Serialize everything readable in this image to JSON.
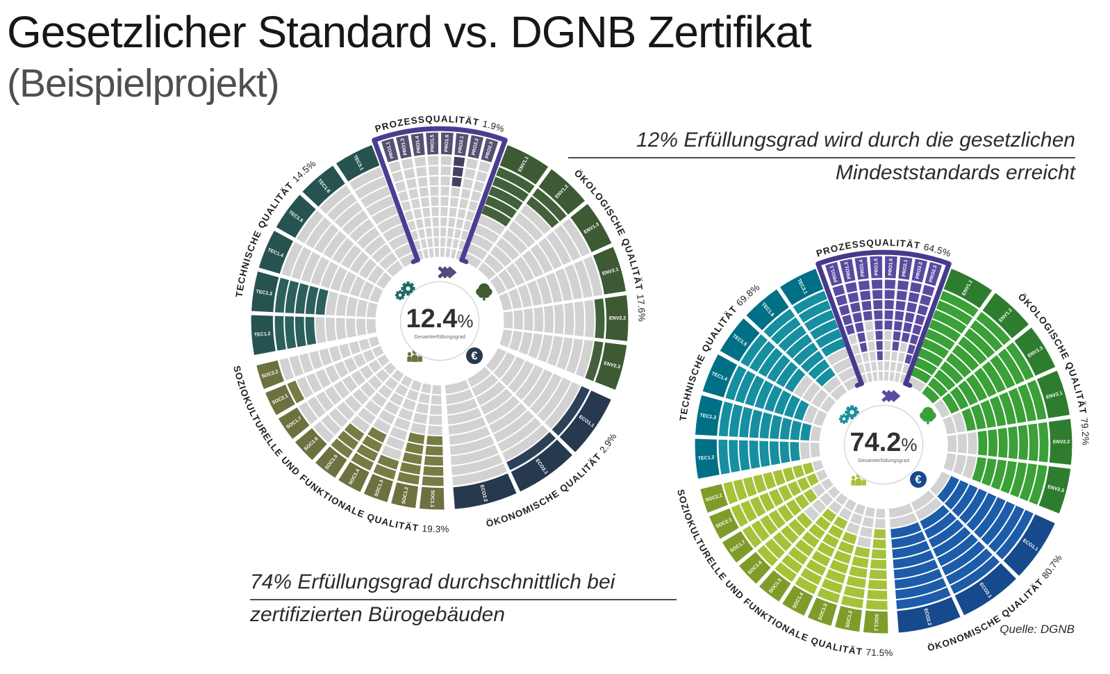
{
  "title": {
    "line1": "Gesetzlicher Standard vs. DGNB Zertifikat",
    "line2": "(Beispielprojekt)"
  },
  "annotations": {
    "legal": {
      "line1": "12% Erfüllungsgrad wird durch die gesetzlichen",
      "line2": "Mindeststandards erreicht"
    },
    "certified": {
      "line1": "74% Erfüllungsgrad durchschnittlich bei",
      "line2": "zertifizierten Bürogebäuden"
    }
  },
  "source": "Quelle: DGNB",
  "chart_data": [
    {
      "type": "radial-rating-wheel",
      "name": "legal-minimum-wheel",
      "center_value": "12.4",
      "center_percent": "%",
      "center_sublabel": "Gesamterfüllungsgrad",
      "rings": 10,
      "empty_cell_color": "#d2d2d2",
      "handle_color": "#4a3d91",
      "value_color": "#303030",
      "icons": [
        {
          "name": "process-arrows-icon",
          "color": "#524a7c",
          "angle": 8,
          "radius": 0.26
        },
        {
          "name": "ecology-tree-icon",
          "color": "#3f5c35",
          "angle": 57,
          "radius": 0.28
        },
        {
          "name": "economy-euro-icon",
          "color": "#27394f",
          "angle": 135,
          "radius": 0.26
        },
        {
          "name": "social-people-icon",
          "color": "#6d7140",
          "angle": 215,
          "radius": 0.23
        },
        {
          "name": "technical-gears-icon",
          "color": "#1d6b66",
          "angle": 312,
          "radius": 0.24
        }
      ],
      "sections": [
        {
          "key": "PRO",
          "label": "PROZESSQUALITÄT",
          "pct": "1.9%",
          "arc": [
            -18.5,
            18.5
          ],
          "label_side": "top",
          "highlight": true,
          "band_color": "#555071",
          "fill_color": "#453f64",
          "criteria": [
            {
              "code": "PRO1.1",
              "fill": 0
            },
            {
              "code": "PRO1.3",
              "fill": 0
            },
            {
              "code": "PRO1.4",
              "fill": 0
            },
            {
              "code": "PRO1.5",
              "fill": 0
            },
            {
              "code": "PRO1.6",
              "fill": 0
            },
            {
              "code": "PRO2.1",
              "fill": 3
            },
            {
              "code": "PRO2.2",
              "fill": 0
            },
            {
              "code": "PRO2.3",
              "fill": 0
            }
          ]
        },
        {
          "key": "ENV",
          "label": "ÖKOLOGISCHE QUALITÄT",
          "pct": "17.6%",
          "arc": [
            20.5,
            112
          ],
          "label_side": "top",
          "band_color": "#3d5a34",
          "fill_color": "#42613a",
          "criteria": [
            {
              "code": "ENV1.1",
              "fill": 5
            },
            {
              "code": "ENV1.2",
              "fill": 2
            },
            {
              "code": "ENV1.3",
              "fill": 0
            },
            {
              "code": "ENV2.1",
              "fill": 0
            },
            {
              "code": "ENV2.2",
              "fill": 1
            },
            {
              "code": "ENV2.3",
              "fill": 1
            }
          ]
        },
        {
          "key": "ECO",
          "label": "ÖKONOMISCHE QUALITÄT",
          "pct": "2.9%",
          "arc": [
            114,
            176
          ],
          "label_side": "bottom",
          "band_color": "#27394f",
          "fill_color": "#2d4158",
          "criteria": [
            {
              "code": "ECO1.1",
              "fill": 1
            },
            {
              "code": "ECO2.1",
              "fill": 1
            },
            {
              "code": "ECO2.2",
              "fill": 0
            }
          ]
        },
        {
          "key": "SOC",
          "label": "SOZIOKULTURELLE UND FUNKTIONALE QUALITÄT",
          "pct": "19.3%",
          "arc": [
            178,
            257
          ],
          "label_side": "bottom",
          "band_color": "#6d7140",
          "fill_color": "#777c45",
          "criteria": [
            {
              "code": "SOC1.1",
              "fill": 5
            },
            {
              "code": "SOC1.2",
              "fill": 5
            },
            {
              "code": "SOC1.3",
              "fill": 2
            },
            {
              "code": "SOC1.4",
              "fill": 4
            },
            {
              "code": "SOC1.5",
              "fill": 3
            },
            {
              "code": "SOC1.6",
              "fill": 0
            },
            {
              "code": "SOC1.7",
              "fill": 0
            },
            {
              "code": "SOC2.1",
              "fill": 1
            },
            {
              "code": "SOC2.2",
              "fill": 0
            }
          ]
        },
        {
          "key": "TEC",
          "label": "TECHNISCHE QUALITÄT",
          "pct": "14.5%",
          "arc": [
            259,
            339.5
          ],
          "label_side": "top",
          "band_color": "#265350",
          "fill_color": "#2c605c",
          "criteria": [
            {
              "code": "TEC1.2",
              "fill": 4
            },
            {
              "code": "TEC1.3",
              "fill": 5
            },
            {
              "code": "TEC1.4",
              "fill": 0
            },
            {
              "code": "TEC1.5",
              "fill": 0
            },
            {
              "code": "TEC1.6",
              "fill": 0
            },
            {
              "code": "TEC3.1",
              "fill": 0
            }
          ]
        }
      ]
    },
    {
      "type": "radial-rating-wheel",
      "name": "certified-average-wheel",
      "center_value": "74.2",
      "center_percent": "%",
      "center_sublabel": "Gesamterfüllungsgrad",
      "rings": 10,
      "empty_cell_color": "#d2d2d2",
      "handle_color": "#463a8c",
      "value_color": "#303030",
      "icons": [
        {
          "name": "process-arrows-icon",
          "color": "#5a4ba0",
          "angle": 8,
          "radius": 0.26
        },
        {
          "name": "ecology-tree-icon",
          "color": "#3aa037",
          "angle": 57,
          "radius": 0.28
        },
        {
          "name": "economy-euro-icon",
          "color": "#164a8c",
          "angle": 135,
          "radius": 0.26
        },
        {
          "name": "social-people-icon",
          "color": "#a6c239",
          "angle": 215,
          "radius": 0.23
        },
        {
          "name": "technical-gears-icon",
          "color": "#168fa0",
          "angle": 312,
          "radius": 0.24
        }
      ],
      "sections": [
        {
          "key": "PRO",
          "label": "PROZESSQUALITÄT",
          "pct": "64.5%",
          "arc": [
            -18.5,
            18.5
          ],
          "label_side": "top",
          "highlight": true,
          "band_color": "#584a9e",
          "fill_color": "#5a4b9f",
          "criteria": [
            {
              "code": "PRO1.1",
              "fill": 5
            },
            {
              "code": "PRO1.3",
              "fill": 7
            },
            {
              "code": "PRO1.4",
              "fill": 4
            },
            {
              "code": "PRO1.5",
              "fill": 8
            },
            {
              "code": "PRO1.6",
              "fill": 5
            },
            {
              "code": "PRO2.1",
              "fill": 7
            },
            {
              "code": "PRO2.2",
              "fill": 6
            },
            {
              "code": "PRO2.3",
              "fill": 8
            }
          ]
        },
        {
          "key": "ENV",
          "label": "ÖKOLOGISCHE QUALITÄT",
          "pct": "79.2%",
          "arc": [
            20.5,
            112
          ],
          "label_side": "top",
          "band_color": "#2e7d2e",
          "fill_color": "#3aa037",
          "criteria": [
            {
              "code": "ENV1.1",
              "fill": 9
            },
            {
              "code": "ENV1.2",
              "fill": 10
            },
            {
              "code": "ENV1.3",
              "fill": 9
            },
            {
              "code": "ENV2.1",
              "fill": 8
            },
            {
              "code": "ENV2.2",
              "fill": 7
            },
            {
              "code": "ENV2.3",
              "fill": 7
            }
          ]
        },
        {
          "key": "ECO",
          "label": "ÖKONOMISCHE QUALITÄT",
          "pct": "80.7%",
          "arc": [
            114,
            176
          ],
          "label_side": "bottom",
          "band_color": "#164a8c",
          "fill_color": "#1d5ca9",
          "criteria": [
            {
              "code": "ECO1.1",
              "fill": 9
            },
            {
              "code": "ECO2.1",
              "fill": 8
            },
            {
              "code": "ECO2.2",
              "fill": 8
            }
          ]
        },
        {
          "key": "SOC",
          "label": "SOZIOKULTURELLE UND FUNKTIONALE QUALITÄT",
          "pct": "71.5%",
          "arc": [
            178,
            257
          ],
          "label_side": "bottom",
          "band_color": "#7f9c2a",
          "fill_color": "#a6c239",
          "criteria": [
            {
              "code": "SOC1.1",
              "fill": 8
            },
            {
              "code": "SOC1.2",
              "fill": 6
            },
            {
              "code": "SOC1.3",
              "fill": 7
            },
            {
              "code": "SOC1.4",
              "fill": 8
            },
            {
              "code": "SOC1.5",
              "fill": 8
            },
            {
              "code": "SOC1.6",
              "fill": 6
            },
            {
              "code": "SOC1.7",
              "fill": 8
            },
            {
              "code": "SOC2.1",
              "fill": 9
            },
            {
              "code": "SOC2.2",
              "fill": 9
            }
          ]
        },
        {
          "key": "TEC",
          "label": "TECHNISCHE QUALITÄT",
          "pct": "69.8%",
          "arc": [
            259,
            339.5
          ],
          "label_side": "top",
          "band_color": "#007086",
          "fill_color": "#168fa0",
          "criteria": [
            {
              "code": "TEC1.2",
              "fill": 8
            },
            {
              "code": "TEC1.3",
              "fill": 9
            },
            {
              "code": "TEC1.4",
              "fill": 8
            },
            {
              "code": "TEC1.5",
              "fill": 6
            },
            {
              "code": "TEC1.6",
              "fill": 8
            },
            {
              "code": "TEC3.1",
              "fill": 6
            }
          ]
        }
      ]
    }
  ]
}
